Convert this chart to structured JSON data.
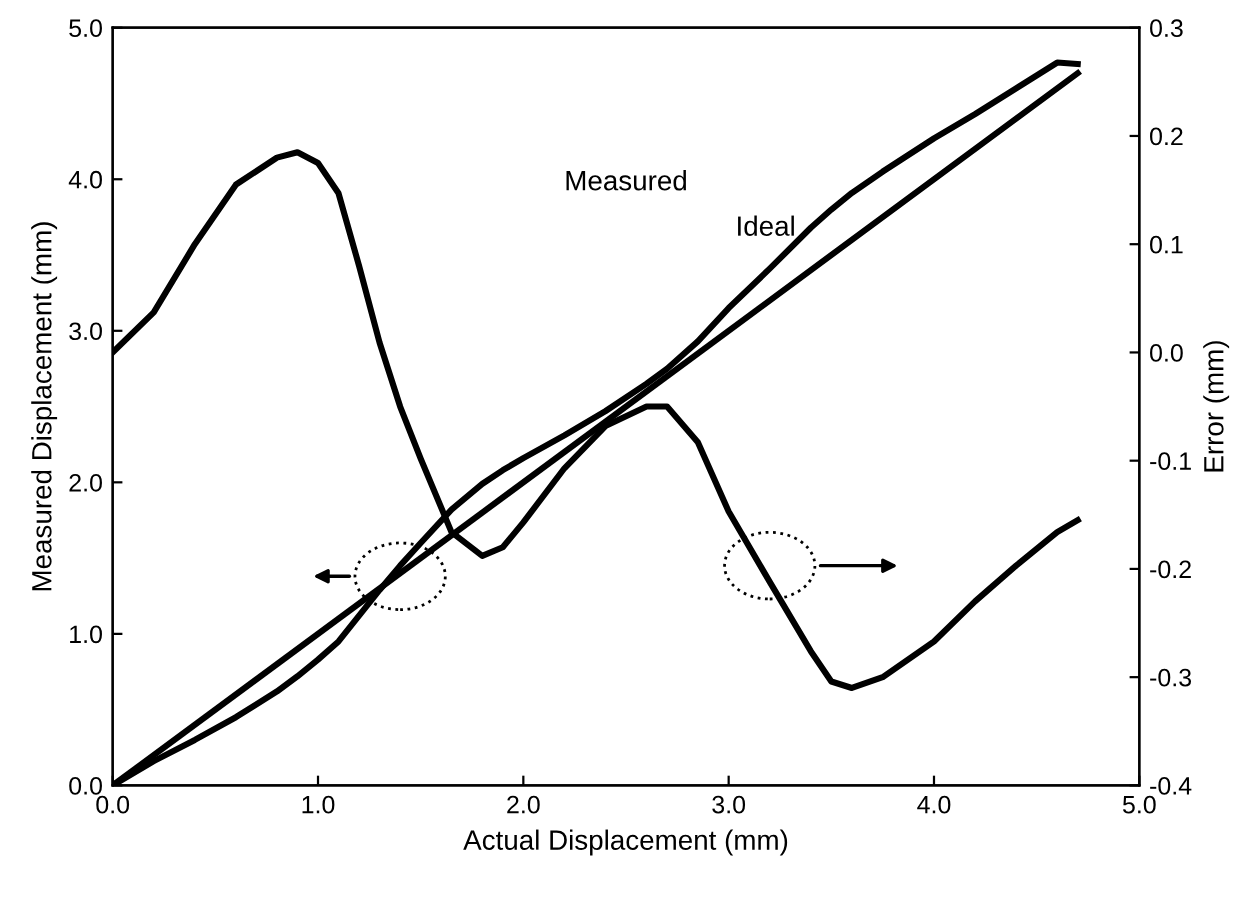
{
  "chart_data": {
    "type": "line",
    "xlabel": "Actual Displacement (mm)",
    "ylabel": "Measured Displacement (mm)",
    "y2label": "Error (mm)",
    "xlim": [
      0,
      5
    ],
    "xticks": [
      {
        "value": 0,
        "label": "0.0"
      },
      {
        "value": 1,
        "label": "1.0"
      },
      {
        "value": 2,
        "label": "2.0"
      },
      {
        "value": 3,
        "label": "3.0"
      },
      {
        "value": 4,
        "label": "4.0"
      },
      {
        "value": 5,
        "label": "5.0"
      }
    ],
    "ylim": [
      0,
      5
    ],
    "yticks": [
      {
        "value": 0,
        "label": "0.0"
      },
      {
        "value": 1,
        "label": "1.0"
      },
      {
        "value": 2,
        "label": "2.0"
      },
      {
        "value": 3,
        "label": "3.0"
      },
      {
        "value": 4,
        "label": "4.0"
      },
      {
        "value": 5,
        "label": "5.0"
      }
    ],
    "y2lim": [
      -0.4,
      0.3
    ],
    "y2ticks": [
      -0.4,
      -0.3,
      -0.2,
      -0.1,
      {
        "value": 0,
        "label": "0.0"
      },
      0.1,
      0.2,
      0.3
    ],
    "grid": false,
    "legend": false,
    "marker": "none",
    "line_style": "solid",
    "series": [
      {
        "color": "#000000",
        "x": [
          0,
          4.7
        ],
        "values": [
          0,
          4.7
        ]
      },
      {
        "color": "#000000",
        "x": [
          0,
          0.2,
          0.4,
          0.6,
          0.8,
          0.9,
          1.0,
          1.1,
          1.2,
          1.3,
          1.4,
          1.5,
          1.65,
          1.8,
          1.9,
          2.0,
          2.2,
          2.4,
          2.6,
          2.7,
          2.85,
          3.0,
          3.2,
          3.4,
          3.5,
          3.6,
          3.75,
          4.0,
          4.2,
          4.4,
          4.6,
          4.7
        ],
        "values": [
          0,
          0.16,
          0.3,
          0.45,
          0.62,
          0.72,
          0.83,
          0.95,
          1.12,
          1.29,
          1.45,
          1.6,
          1.82,
          1.99,
          2.08,
          2.16,
          2.31,
          2.47,
          2.65,
          2.75,
          2.93,
          3.15,
          3.41,
          3.68,
          3.8,
          3.91,
          4.05,
          4.27,
          4.43,
          4.6,
          4.77,
          4.76
        ]
      },
      {
        "color": "#000000",
        "axis": "y2",
        "x": [
          0,
          0.2,
          0.4,
          0.6,
          0.8,
          0.9,
          1.0,
          1.1,
          1.2,
          1.3,
          1.4,
          1.5,
          1.65,
          1.8,
          1.9,
          2.0,
          2.2,
          2.4,
          2.6,
          2.7,
          2.85,
          3.0,
          3.2,
          3.4,
          3.5,
          3.6,
          3.75,
          4.0,
          4.2,
          4.4,
          4.6,
          4.7
        ],
        "values": [
          0.0,
          0.037,
          0.1,
          0.155,
          0.18,
          0.185,
          0.175,
          0.147,
          0.08,
          0.009,
          -0.05,
          -0.098,
          -0.166,
          -0.188,
          -0.18,
          -0.157,
          -0.107,
          -0.068,
          -0.05,
          -0.05,
          -0.083,
          -0.147,
          -0.212,
          -0.276,
          -0.304,
          -0.31,
          -0.3,
          -0.267,
          -0.23,
          -0.197,
          -0.166,
          -0.155
        ]
      }
    ],
    "annotations": [
      "Measured",
      "Ideal"
    ]
  }
}
